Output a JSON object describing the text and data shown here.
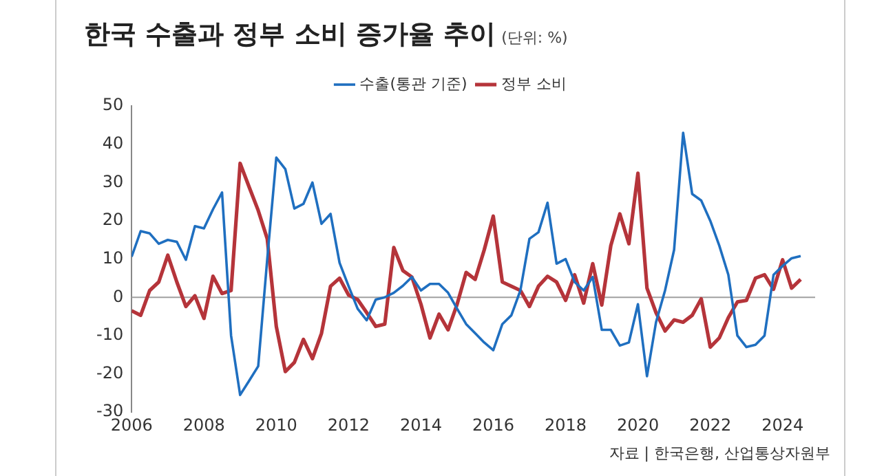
{
  "chart_data": {
    "type": "line",
    "title": "한국 수출과 정부 소비 증가율 추이",
    "subtitle": "(단위: %)",
    "x": [
      2006,
      2006.25,
      2006.5,
      2006.75,
      2007,
      2007.25,
      2007.5,
      2007.75,
      2008,
      2008.25,
      2008.5,
      2008.75,
      2009,
      2009.25,
      2009.5,
      2009.75,
      2010,
      2010.25,
      2010.5,
      2010.75,
      2011,
      2011.25,
      2011.5,
      2011.75,
      2012,
      2012.25,
      2012.5,
      2012.75,
      2013,
      2013.25,
      2013.5,
      2013.75,
      2014,
      2014.25,
      2014.5,
      2014.75,
      2015,
      2015.25,
      2015.5,
      2015.75,
      2016,
      2016.25,
      2016.5,
      2016.75,
      2017,
      2017.25,
      2017.5,
      2017.75,
      2018,
      2018.25,
      2018.5,
      2018.75,
      2019,
      2019.25,
      2019.5,
      2019.75,
      2020,
      2020.25,
      2020.5,
      2020.75,
      2021,
      2021.25,
      2021.5,
      2021.75,
      2022,
      2022.25,
      2022.5,
      2022.75,
      2023,
      2023.25,
      2023.5,
      2023.75,
      2024,
      2024.25,
      2024.5
    ],
    "series": [
      {
        "name": "수출(통관 기준)",
        "color": "#1f6fc0",
        "values": [
          10.6,
          17.3,
          16.7,
          14,
          15,
          14.5,
          9.8,
          18.6,
          18,
          23,
          27.4,
          -10,
          -25.5,
          -21.8,
          -18,
          10,
          36.5,
          33.5,
          23.2,
          24.4,
          30,
          19.2,
          21.8,
          9,
          2.9,
          -3,
          -6,
          -0.6,
          0,
          1.2,
          3,
          5.3,
          1.8,
          3.5,
          3.5,
          1.2,
          -3,
          -7,
          -9.4,
          -11.8,
          -13.8,
          -7,
          -4.7,
          1.8,
          15.3,
          17,
          24.7,
          8.8,
          10,
          4,
          1.8,
          5.3,
          -8.5,
          -8.5,
          -12.6,
          -11.8,
          -1.8,
          -20.6,
          -6.5,
          1.8,
          12.4,
          43,
          27,
          25.3,
          20,
          13.5,
          5.9,
          -10,
          -13,
          -12.4,
          -10,
          5.9,
          8.2,
          10.2,
          10.8
        ]
      },
      {
        "name": "정부 소비",
        "color": "#b5343a",
        "values": [
          -3.5,
          -4.7,
          1.8,
          4,
          11,
          4,
          -2.4,
          0.4,
          -5.5,
          5.5,
          1,
          1.8,
          35,
          28.8,
          22.7,
          15.3,
          -7.6,
          -19.4,
          -17,
          -11,
          -16,
          -9.4,
          2.9,
          5,
          0.6,
          -0.6,
          -4,
          -7.6,
          -7,
          13,
          7,
          5.3,
          -1.8,
          -10.6,
          -4.4,
          -8.5,
          -1.8,
          6.5,
          4.7,
          12.4,
          21.2,
          4,
          2.9,
          1.8,
          -2.4,
          2.9,
          5.5,
          4,
          -0.8,
          5.9,
          -1.5,
          8.8,
          -2,
          13.5,
          21.8,
          14,
          32.4,
          2.4,
          -4,
          -8.8,
          -5.9,
          -6.5,
          -4.7,
          -0.4,
          -13,
          -10.6,
          -5.3,
          -1.2,
          -0.8,
          5,
          5.9,
          2.1,
          9.8,
          2.4,
          4.7
        ]
      }
    ],
    "xlim": [
      2006,
      2024.9
    ],
    "xticks": [
      {
        "value": 2006,
        "label": "2006"
      },
      {
        "value": 2008,
        "label": "2008"
      },
      {
        "value": 2010,
        "label": "2010"
      },
      {
        "value": 2012,
        "label": "2012"
      },
      {
        "value": 2014,
        "label": "2014"
      },
      {
        "value": 2016,
        "label": "2016"
      },
      {
        "value": 2018,
        "label": "2018"
      },
      {
        "value": 2020,
        "label": "2020"
      },
      {
        "value": 2022,
        "label": "2022"
      },
      {
        "value": 2024,
        "label": "2024"
      }
    ],
    "ylim": [
      -30,
      50
    ],
    "yticks": [
      -30,
      -20,
      -10,
      0,
      10,
      20,
      30,
      40,
      50
    ],
    "ref_lines": [
      {
        "axis": "y",
        "value": 0,
        "color": "#a0a0a0"
      }
    ],
    "grid": false,
    "legend": "top",
    "marker": "none",
    "line_style": "solid",
    "annotations": [
      "자료 | 한국은행, 산업통상자원부"
    ]
  }
}
